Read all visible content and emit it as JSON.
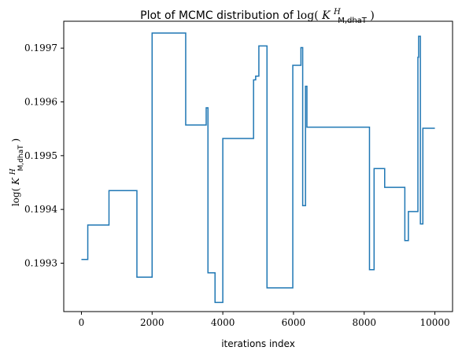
{
  "chart_data": {
    "type": "line",
    "title": "Plot of MCMC distribution of log(K^H_M,dhaT)",
    "title_parts": {
      "prefix": "Plot of MCMC distribution of ",
      "math_func": "log(",
      "math_symbol": "K",
      "math_sup": "H",
      "math_sub": "M,dhaT",
      "math_close": ")"
    },
    "xlabel": "iterations index",
    "ylabel": "log(K^H_M,dhaT)",
    "ylabel_parts": {
      "math_func": "log(",
      "math_symbol": "K",
      "math_sup": "H",
      "math_sub": "M,dhaT",
      "math_close": ")"
    },
    "xlim": [
      -500,
      10500
    ],
    "ylim": [
      0.19921,
      0.19975
    ],
    "xticks": [
      0,
      2000,
      4000,
      6000,
      8000,
      10000
    ],
    "xtick_labels": [
      "0",
      "2000",
      "4000",
      "6000",
      "8000",
      "10000"
    ],
    "yticks": [
      0.1993,
      0.1994,
      0.1995,
      0.1996,
      0.1997
    ],
    "ytick_labels": [
      "0.1993",
      "0.1994",
      "0.1995",
      "0.1996",
      "0.1997"
    ],
    "grid": false,
    "legend": "none",
    "line_color": "#1f77b4",
    "step": "post",
    "series": [
      {
        "x": [
          0,
          180,
          780,
          1570,
          2000,
          2950,
          3530,
          3580,
          3780,
          4000,
          4870,
          4930,
          5020,
          5250,
          5980,
          6210,
          6260,
          6340,
          6380,
          6400,
          8150,
          8280,
          8580,
          9150,
          9250,
          9520,
          9540,
          9590,
          9660,
          10000
        ],
        "y": [
          0.199307,
          0.199371,
          0.199435,
          0.199274,
          0.199728,
          0.199557,
          0.199589,
          0.199282,
          0.199227,
          0.199532,
          0.199641,
          0.199648,
          0.199704,
          0.199254,
          0.199668,
          0.199701,
          0.199407,
          0.199629,
          0.199553,
          0.199553,
          0.199288,
          0.199476,
          0.199441,
          0.199342,
          0.199396,
          0.199683,
          0.199722,
          0.199373,
          0.199551,
          0.199551
        ]
      }
    ]
  }
}
